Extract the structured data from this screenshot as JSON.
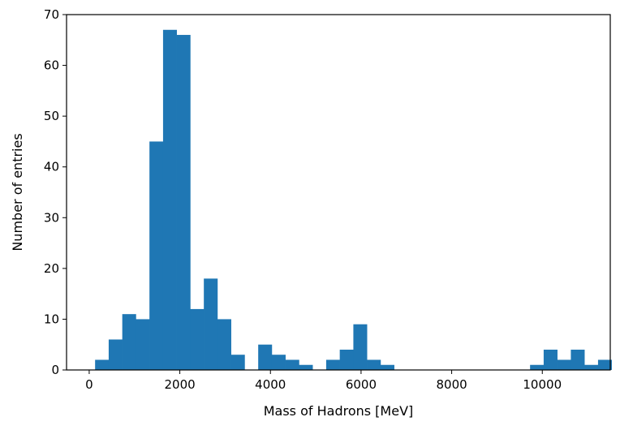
{
  "chart_data": {
    "type": "bar",
    "title": "",
    "xlabel": "Mass of Hadrons [MeV]",
    "ylabel": "Number of entries",
    "xlim": [
      -500,
      11500
    ],
    "ylim": [
      0,
      70
    ],
    "x_ticks": [
      0,
      2000,
      4000,
      6000,
      8000,
      10000
    ],
    "y_ticks": [
      0,
      10,
      20,
      30,
      40,
      50,
      60,
      70
    ],
    "bin_width": 300,
    "bin_edges_start": 130,
    "counts": [
      2,
      6,
      11,
      10,
      45,
      67,
      66,
      12,
      18,
      10,
      3,
      0,
      5,
      3,
      2,
      1,
      0,
      2,
      4,
      9,
      2,
      1,
      0,
      0,
      0,
      0,
      0,
      0,
      0,
      0,
      0,
      0,
      1,
      4,
      2,
      4,
      1,
      2
    ],
    "bar_color": "#1f77b4",
    "grid": false
  }
}
